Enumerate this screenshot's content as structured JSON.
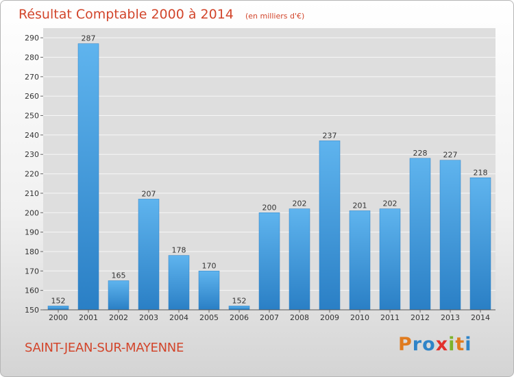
{
  "chart_data": {
    "type": "bar",
    "title": "Résultat Comptable 2000 à 2014",
    "subtitle": "(en milliers d'€)",
    "xlabel": "",
    "ylabel": "",
    "categories": [
      "2000",
      "2001",
      "2002",
      "2003",
      "2004",
      "2005",
      "2006",
      "2007",
      "2008",
      "2009",
      "2010",
      "2011",
      "2012",
      "2013",
      "2014"
    ],
    "values": [
      152,
      287,
      165,
      207,
      178,
      170,
      152,
      200,
      202,
      237,
      201,
      202,
      228,
      227,
      218
    ],
    "ylim": [
      150,
      295
    ],
    "yticks": [
      150,
      160,
      170,
      180,
      190,
      200,
      210,
      220,
      230,
      240,
      250,
      260,
      270,
      280,
      290
    ],
    "grid": true,
    "legend": "none",
    "bar_color": "#3d95d9"
  },
  "footer": {
    "commune": "SAINT-JEAN-SUR-MAYENNE",
    "logo": {
      "letters": [
        "P",
        "r",
        "o",
        "x",
        "i",
        "t",
        "i"
      ],
      "colors": [
        "#e07b1f",
        "#2f84c8",
        "#2f84c8",
        "#e2312c",
        "#7cb32b",
        "#e07b1f",
        "#2f84c8"
      ]
    }
  }
}
